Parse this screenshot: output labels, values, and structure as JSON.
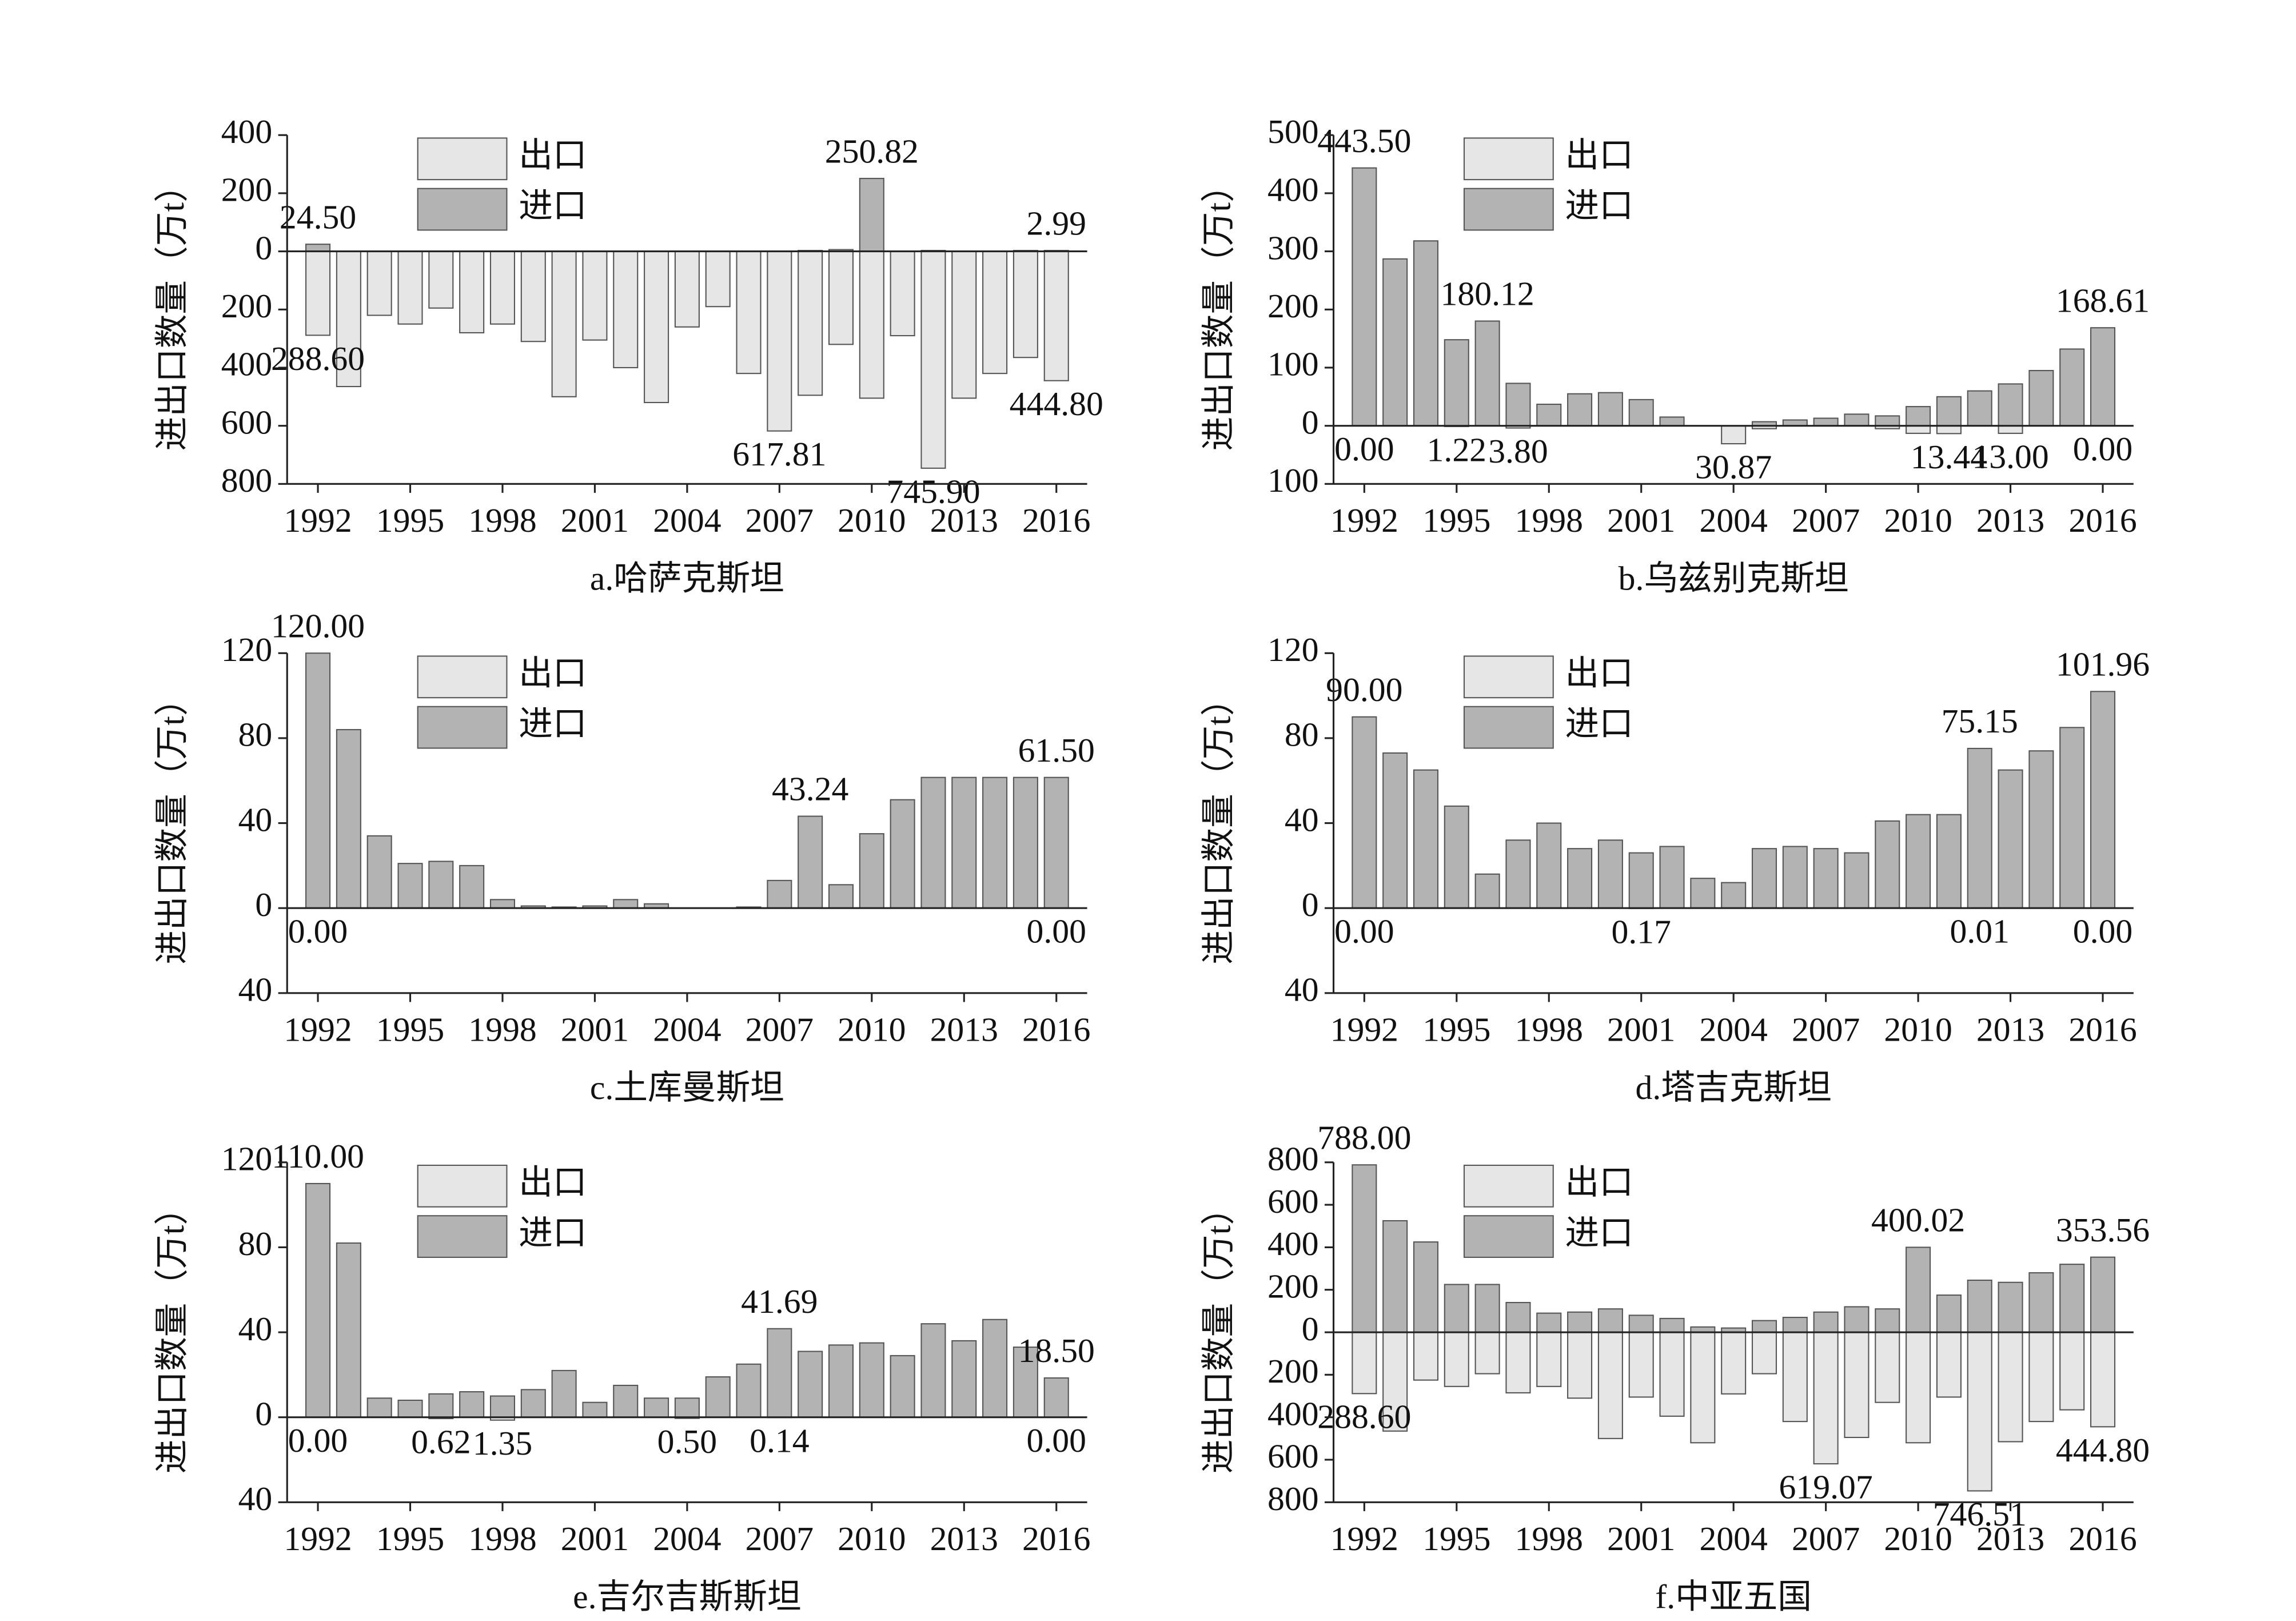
{
  "chart_data": [
    {
      "type": "bar",
      "title": "a.哈萨克斯坦",
      "y_label": "进出口数量（万t）",
      "categories": [
        "1992",
        null,
        null,
        "1995",
        null,
        null,
        "1998",
        null,
        null,
        "2001",
        null,
        null,
        "2004",
        null,
        null,
        "2007",
        null,
        null,
        "2010",
        null,
        null,
        "2013",
        null,
        null,
        "2016"
      ],
      "series": [
        {
          "name": "出口",
          "color": "#e6e6e6",
          "values": [
            -288.6,
            -465,
            -220,
            -250,
            -195,
            -280,
            -250,
            -310,
            -500,
            -305,
            -400,
            -520,
            -260,
            -190,
            -420,
            -617.81,
            -495,
            -320,
            -505,
            -290,
            -745.9,
            -505,
            -420,
            -365,
            -444.8
          ],
          "value_labels": [
            "288.60",
            null,
            null,
            null,
            null,
            null,
            null,
            null,
            null,
            null,
            null,
            null,
            null,
            null,
            null,
            "617.81",
            null,
            null,
            null,
            null,
            "745.90",
            null,
            null,
            null,
            "444.80"
          ]
        },
        {
          "name": "进口",
          "color": "#b3b3b3",
          "values": [
            24.5,
            0,
            0,
            0,
            0,
            0,
            0,
            0,
            0,
            0,
            0,
            0,
            0,
            0,
            0,
            0,
            3,
            6,
            250.82,
            0,
            3,
            0,
            0,
            3,
            2.99
          ],
          "value_labels": [
            "24.50",
            null,
            null,
            null,
            null,
            null,
            null,
            null,
            null,
            null,
            null,
            null,
            null,
            null,
            null,
            null,
            null,
            null,
            "250.82",
            null,
            null,
            null,
            null,
            null,
            "2.99"
          ]
        }
      ],
      "ylim": [
        -800,
        400
      ],
      "yticks": [
        400,
        200,
        0,
        {
          "value": -200,
          "label": "200"
        },
        {
          "value": -400,
          "label": "400"
        },
        {
          "value": -600,
          "label": "600"
        },
        {
          "value": -800,
          "label": "800"
        }
      ]
    },
    {
      "type": "bar",
      "title": "b.乌兹别克斯坦",
      "y_label": "进出口数量（万t）",
      "categories": [
        "1992",
        null,
        null,
        "1995",
        null,
        null,
        "1998",
        null,
        null,
        "2001",
        null,
        null,
        "2004",
        null,
        null,
        "2007",
        null,
        null,
        "2010",
        null,
        null,
        "2013",
        null,
        null,
        "2016"
      ],
      "series": [
        {
          "name": "出口",
          "color": "#e6e6e6",
          "values": [
            0,
            0,
            0,
            -1.22,
            0,
            -3.8,
            0,
            0,
            0,
            0,
            0,
            0,
            -30.87,
            -5,
            0,
            0,
            0,
            -5,
            -13,
            -13.44,
            0,
            -13,
            0,
            0,
            0
          ],
          "value_labels": [
            "0.00",
            null,
            null,
            "1.22",
            null,
            "3.80",
            null,
            null,
            null,
            null,
            null,
            null,
            "30.87",
            null,
            null,
            null,
            null,
            null,
            null,
            "13.44",
            null,
            "13.00",
            null,
            null,
            "0.00"
          ]
        },
        {
          "name": "进口",
          "color": "#b3b3b3",
          "values": [
            443.5,
            287,
            318,
            148,
            180.12,
            73,
            37,
            55,
            57,
            45,
            15,
            0,
            0,
            7,
            10,
            13,
            20,
            17,
            33,
            50,
            60,
            72,
            95,
            132,
            168.61
          ],
          "value_labels": [
            "443.50",
            null,
            null,
            null,
            "180.12",
            null,
            null,
            null,
            null,
            null,
            null,
            null,
            null,
            null,
            null,
            null,
            null,
            null,
            null,
            null,
            null,
            null,
            null,
            null,
            "168.61"
          ]
        }
      ],
      "ylim": [
        -100,
        500
      ],
      "yticks": [
        500,
        400,
        300,
        200,
        100,
        0,
        {
          "value": -100,
          "label": "100"
        }
      ]
    },
    {
      "type": "bar",
      "title": "c.土库曼斯坦",
      "y_label": "进出口数量（万t）",
      "categories": [
        "1992",
        null,
        null,
        "1995",
        null,
        null,
        "1998",
        null,
        null,
        "2001",
        null,
        null,
        "2004",
        null,
        null,
        "2007",
        null,
        null,
        "2010",
        null,
        null,
        "2013",
        null,
        null,
        "2016"
      ],
      "series": [
        {
          "name": "出口",
          "color": "#e6e6e6",
          "values": [
            0,
            0,
            0,
            0,
            0,
            0,
            0,
            0,
            0,
            0,
            0,
            0,
            0,
            0,
            0,
            0,
            0,
            0,
            0,
            0,
            0,
            0,
            0,
            0,
            0
          ],
          "value_labels": [
            "0.00",
            null,
            null,
            null,
            null,
            null,
            null,
            null,
            null,
            null,
            null,
            null,
            null,
            null,
            null,
            null,
            null,
            null,
            null,
            null,
            null,
            null,
            null,
            null,
            "0.00"
          ]
        },
        {
          "name": "进口",
          "color": "#b3b3b3",
          "values": [
            120,
            84,
            34,
            21,
            22,
            20,
            4,
            1,
            0.5,
            1,
            4,
            2,
            0,
            0,
            0.5,
            13,
            43.24,
            11,
            35,
            51,
            61.5,
            61.5,
            61.5,
            61.5,
            61.5
          ],
          "value_labels": [
            "120.00",
            null,
            null,
            null,
            null,
            null,
            null,
            null,
            null,
            null,
            null,
            null,
            null,
            null,
            null,
            null,
            "43.24",
            null,
            null,
            null,
            null,
            null,
            null,
            null,
            "61.50"
          ]
        }
      ],
      "ylim": [
        -40,
        120
      ],
      "yticks": [
        120,
        80,
        40,
        0,
        {
          "value": -40,
          "label": "40"
        }
      ]
    },
    {
      "type": "bar",
      "title": "d.塔吉克斯坦",
      "y_label": "进出口数量（万t）",
      "categories": [
        "1992",
        null,
        null,
        "1995",
        null,
        null,
        "1998",
        null,
        null,
        "2001",
        null,
        null,
        "2004",
        null,
        null,
        "2007",
        null,
        null,
        "2010",
        null,
        null,
        "2013",
        null,
        null,
        "2016"
      ],
      "series": [
        {
          "name": "出口",
          "color": "#e6e6e6",
          "values": [
            0,
            0,
            0,
            0,
            0,
            0,
            0,
            0,
            0,
            -0.17,
            0,
            0,
            0,
            0,
            0,
            0,
            0,
            0,
            0,
            0,
            -0.01,
            0,
            0,
            0,
            0
          ],
          "value_labels": [
            "0.00",
            null,
            null,
            null,
            null,
            null,
            null,
            null,
            null,
            "0.17",
            null,
            null,
            null,
            null,
            null,
            null,
            null,
            null,
            null,
            null,
            "0.01",
            null,
            null,
            null,
            "0.00"
          ]
        },
        {
          "name": "进口",
          "color": "#b3b3b3",
          "values": [
            90,
            73,
            65,
            48,
            16,
            32,
            40,
            28,
            32,
            26,
            29,
            14,
            12,
            28,
            29,
            28,
            26,
            41,
            44,
            44,
            75.15,
            65,
            74,
            85,
            101.96
          ],
          "value_labels": [
            "90.00",
            null,
            null,
            null,
            null,
            null,
            null,
            null,
            null,
            null,
            null,
            null,
            null,
            null,
            null,
            null,
            null,
            null,
            null,
            null,
            "75.15",
            null,
            null,
            null,
            "101.96"
          ]
        }
      ],
      "ylim": [
        -40,
        120
      ],
      "yticks": [
        120,
        80,
        40,
        0,
        {
          "value": -40,
          "label": "40"
        }
      ]
    },
    {
      "type": "bar",
      "title": "e.吉尔吉斯斯坦",
      "y_label": "进出口数量（万t）",
      "categories": [
        "1992",
        null,
        null,
        "1995",
        null,
        null,
        "1998",
        null,
        null,
        "2001",
        null,
        null,
        "2004",
        null,
        null,
        "2007",
        null,
        null,
        "2010",
        null,
        null,
        "2013",
        null,
        null,
        "2016"
      ],
      "series": [
        {
          "name": "出口",
          "color": "#e6e6e6",
          "values": [
            0,
            0,
            0,
            0,
            -0.62,
            0,
            -1.35,
            0,
            0,
            0,
            0,
            0,
            -0.5,
            0,
            0,
            -0.14,
            0,
            0,
            0,
            0,
            0,
            0,
            0,
            0,
            0
          ],
          "value_labels": [
            "0.00",
            null,
            null,
            null,
            "0.62",
            null,
            "1.35",
            null,
            null,
            null,
            null,
            null,
            "0.50",
            null,
            null,
            "0.14",
            null,
            null,
            null,
            null,
            null,
            null,
            null,
            null,
            "0.00"
          ]
        },
        {
          "name": "进口",
          "color": "#b3b3b3",
          "values": [
            110,
            82,
            9,
            8,
            11,
            12,
            10,
            13,
            22,
            7,
            15,
            9,
            9,
            19,
            25,
            41.69,
            31,
            34,
            35,
            29,
            44,
            36,
            46,
            33,
            18.5
          ],
          "value_labels": [
            "110.00",
            null,
            null,
            null,
            null,
            null,
            null,
            null,
            null,
            null,
            null,
            null,
            null,
            null,
            null,
            "41.69",
            null,
            null,
            null,
            null,
            null,
            null,
            null,
            null,
            "18.50"
          ]
        }
      ],
      "ylim": [
        -40,
        120
      ],
      "yticks": [
        120,
        80,
        40,
        0,
        {
          "value": -40,
          "label": "40"
        }
      ]
    },
    {
      "type": "bar",
      "title": "f.中亚五国",
      "y_label": "进出口数量（万t）",
      "categories": [
        "1992",
        null,
        null,
        "1995",
        null,
        null,
        "1998",
        null,
        null,
        "2001",
        null,
        null,
        "2004",
        null,
        null,
        "2007",
        null,
        null,
        "2010",
        null,
        null,
        "2013",
        null,
        null,
        "2016"
      ],
      "series": [
        {
          "name": "出口",
          "color": "#e6e6e6",
          "values": [
            -288.6,
            -465,
            -225,
            -255,
            -195,
            -285,
            -255,
            -310,
            -500,
            -305,
            -395,
            -520,
            -290,
            -195,
            -420,
            -619.07,
            -495,
            -330,
            -520,
            -305,
            -746.51,
            -515,
            -420,
            -365,
            -444.8
          ],
          "value_labels": [
            "288.60",
            null,
            null,
            null,
            null,
            null,
            null,
            null,
            null,
            null,
            null,
            null,
            null,
            null,
            null,
            "619.07",
            null,
            null,
            null,
            null,
            "746.51",
            null,
            null,
            null,
            "444.80"
          ]
        },
        {
          "name": "进口",
          "color": "#b3b3b3",
          "values": [
            788,
            525,
            425,
            225,
            225,
            140,
            90,
            95,
            110,
            80,
            65,
            25,
            20,
            55,
            70,
            95,
            120,
            110,
            400.02,
            175,
            245,
            235,
            280,
            320,
            353.56
          ],
          "value_labels": [
            "788.00",
            null,
            null,
            null,
            null,
            null,
            null,
            null,
            null,
            null,
            null,
            null,
            null,
            null,
            null,
            null,
            null,
            null,
            "400.02",
            null,
            null,
            null,
            null,
            null,
            "353.56"
          ]
        }
      ],
      "ylim": [
        -800,
        800
      ],
      "yticks": [
        800,
        600,
        400,
        200,
        0,
        {
          "value": -200,
          "label": "200"
        },
        {
          "value": -400,
          "label": "400"
        },
        {
          "value": -600,
          "label": "600"
        },
        {
          "value": -800,
          "label": "800"
        }
      ]
    }
  ]
}
